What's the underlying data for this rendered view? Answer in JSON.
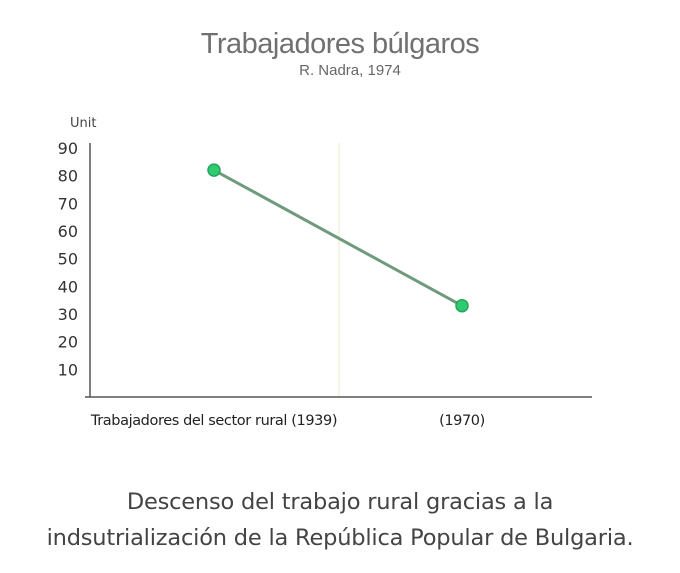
{
  "chart_data": {
    "type": "line",
    "title": "Trabajadores búlgaros",
    "subtitle": "R. Nadra, 1974",
    "ylabel": "Unit",
    "xlabel": "",
    "categories": [
      "Trabajadores del sector rural (1939)",
      "(1970)"
    ],
    "series": [
      {
        "values": [
          82,
          33
        ]
      }
    ],
    "ylim": [
      0,
      90
    ],
    "yticks": [
      10,
      20,
      30,
      40,
      50,
      60,
      70,
      80,
      90
    ],
    "grid": false,
    "colors": {
      "line": "#6f9a7c",
      "marker": "#2ecc71",
      "marker_edge": "#27a35c",
      "axis": "#555555"
    }
  },
  "caption": {
    "line1": "Descenso del trabajo rural gracias a la",
    "line2": "indsutrialización de la República Popular de Bulgaria."
  }
}
